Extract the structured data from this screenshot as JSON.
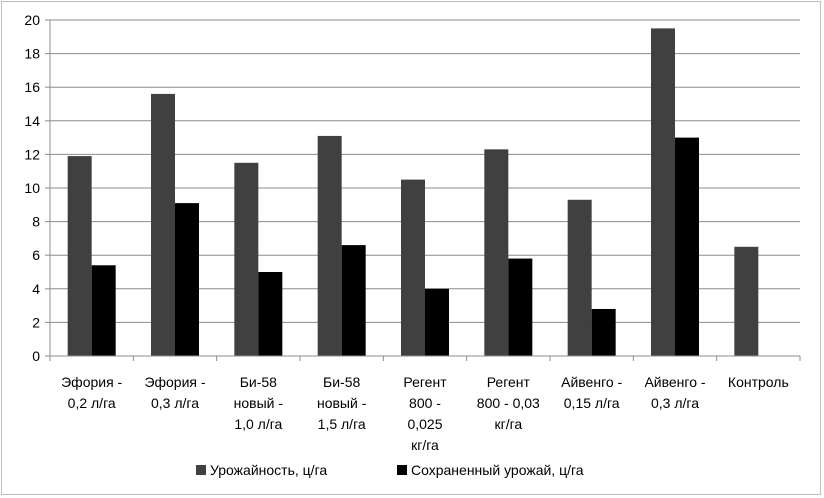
{
  "chart_data": {
    "type": "bar",
    "categories": [
      [
        "Эфория -",
        "0,2 л/га"
      ],
      [
        "Эфория -",
        "0,3 л/га"
      ],
      [
        "Би-58",
        "новый -",
        "1,0 л/га"
      ],
      [
        "Би-58",
        "новый -",
        "1,5 л/га"
      ],
      [
        "Регент",
        "800 -",
        "0,025",
        "кг/га"
      ],
      [
        "Регент",
        "800 - 0,03",
        "кг/га"
      ],
      [
        "Айвенго -",
        "0,15 л/га"
      ],
      [
        "Айвенго -",
        "0,3 л/га"
      ],
      [
        "Контроль"
      ]
    ],
    "series": [
      {
        "name": "Урожайность, ц/га",
        "color": "#404040",
        "values": [
          11.9,
          15.6,
          11.5,
          13.1,
          10.5,
          12.3,
          9.3,
          19.5,
          6.5
        ]
      },
      {
        "name": "Сохраненный урожай, ц/га",
        "color": "#000000",
        "values": [
          5.4,
          9.1,
          5.0,
          6.6,
          4.0,
          5.8,
          2.8,
          13.0,
          null
        ]
      }
    ],
    "ylim": [
      0,
      20
    ],
    "yticks": [
      0,
      2,
      4,
      6,
      8,
      10,
      12,
      14,
      16,
      18,
      20
    ],
    "grid": true,
    "legend_position": "bottom"
  }
}
